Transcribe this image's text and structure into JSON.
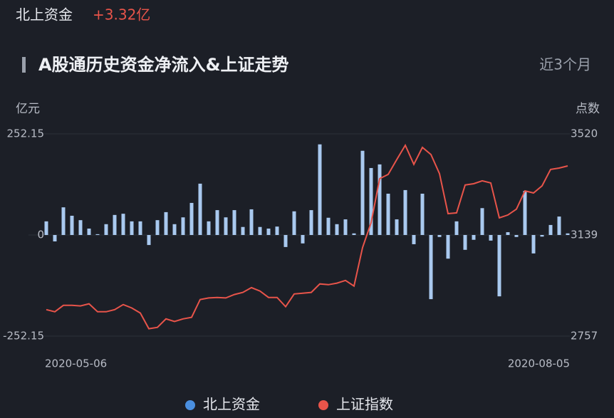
{
  "header": {
    "label": "北上资金",
    "value": "+3.32亿"
  },
  "period": "近3个月",
  "chart_data": {
    "type": "bar-line",
    "title": "A股通历史资金净流入&上证走势",
    "y_label": "亿元",
    "y2_label": "点数",
    "categories": [
      "2020-05-06",
      null,
      null,
      null,
      null,
      null,
      null,
      null,
      null,
      null,
      null,
      null,
      null,
      null,
      null,
      null,
      null,
      null,
      null,
      null,
      null,
      null,
      null,
      null,
      null,
      null,
      null,
      null,
      null,
      null,
      null,
      null,
      null,
      null,
      null,
      null,
      null,
      null,
      null,
      null,
      null,
      null,
      null,
      null,
      null,
      null,
      null,
      null,
      null,
      null,
      null,
      null,
      null,
      null,
      null,
      null,
      null,
      null,
      null,
      null,
      null,
      "2020-08-05"
    ],
    "ylim": [
      -252.15,
      252.15
    ],
    "yticks": [
      -252.15,
      0,
      252.15
    ],
    "y2lim": [
      2757,
      3520
    ],
    "y2ticks": [
      2757,
      3139,
      3520
    ],
    "series": [
      {
        "name": "北上资金",
        "color": "#4a8fe0",
        "bar_color": "#a9c9ef",
        "values": [
          34,
          -16,
          69,
          48,
          37,
          16,
          2,
          27,
          50,
          53,
          34,
          34,
          -25,
          37,
          57,
          27,
          44,
          80,
          128,
          34,
          62,
          44,
          62,
          20,
          64,
          20,
          16,
          21,
          -30,
          59,
          -21,
          62,
          226,
          43,
          27,
          39,
          4,
          210,
          167,
          176,
          103,
          39,
          112,
          -23,
          103,
          -160,
          -5,
          -59,
          34,
          -37,
          -12,
          67,
          -14,
          -153,
          7,
          -5,
          110,
          -46,
          -4,
          25,
          46,
          4
        ]
      },
      {
        "name": "上证指数",
        "color": "#e8544a",
        "axis": "y2",
        "values": [
          2857,
          2849,
          2873,
          2873,
          2871,
          2879,
          2849,
          2849,
          2857,
          2876,
          2863,
          2844,
          2785,
          2790,
          2822,
          2812,
          2822,
          2828,
          2895,
          2901,
          2903,
          2901,
          2914,
          2922,
          2940,
          2927,
          2903,
          2903,
          2868,
          2916,
          2919,
          2922,
          2954,
          2951,
          2957,
          2967,
          2946,
          3091,
          3185,
          3351,
          3367,
          3423,
          3477,
          3405,
          3469,
          3442,
          3370,
          3219,
          3222,
          3327,
          3332,
          3343,
          3335,
          3203,
          3214,
          3236,
          3305,
          3297,
          3324,
          3386,
          3391,
          3399
        ]
      }
    ]
  }
}
